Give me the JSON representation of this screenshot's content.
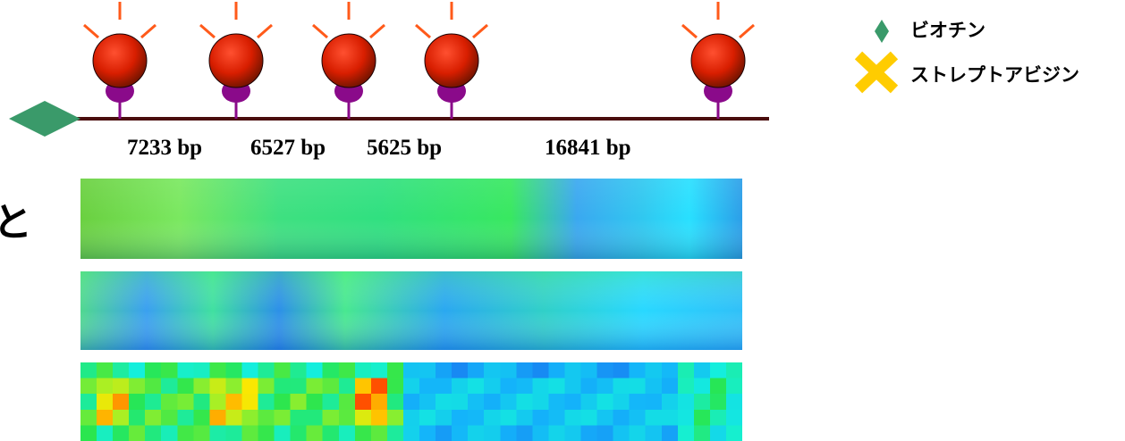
{
  "colors": {
    "line": "#4a0d0d",
    "biotin": "#3a9a6a",
    "streptavidin": "#ffcc00",
    "bead_core": "#e02000",
    "bead_edge": "#7a1500",
    "bead_rays": "#ff5a1a",
    "anchor": "#8a0a8a"
  },
  "legend": {
    "biotin_label": "ビオチン",
    "streptavidin_label": "ストレプトアビジン"
  },
  "edge_text": "と",
  "bead_count": 5,
  "segments": [
    "7233 bp",
    "6527 bp",
    "5625 bp",
    "16841 bp"
  ],
  "image_strips": [
    {
      "name": "strip-1",
      "rendering": "smooth"
    },
    {
      "name": "strip-2",
      "rendering": "smooth"
    },
    {
      "name": "strip-3",
      "rendering": "pixelated"
    }
  ]
}
